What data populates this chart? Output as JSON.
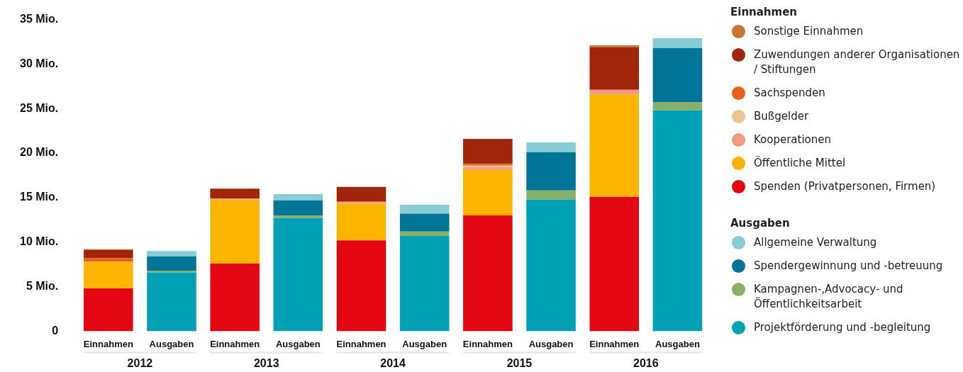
{
  "chart_data": {
    "type": "bar",
    "stacked": true,
    "categories": [
      "Einnahmen",
      "Ausgaben",
      "Einnahmen",
      "Ausgaben",
      "Einnahmen",
      "Ausgaben",
      "Einnahmen",
      "Ausgaben",
      "Einnahmen",
      "Ausgaben"
    ],
    "series": [
      {
        "name": "Spenden (Privatpersonen, Firmen)",
        "color": "#e30613",
        "values": [
          4.8,
          null,
          7.6,
          null,
          10.2,
          null,
          13.0,
          null,
          15.1,
          null
        ]
      },
      {
        "name": "Öffentliche Mittel",
        "color": "#fbb500",
        "values": [
          3.0,
          null,
          7.2,
          null,
          4.1,
          null,
          5.1,
          null,
          11.5,
          null
        ]
      },
      {
        "name": "Kooperationen",
        "color": "#f39b7f",
        "values": [
          null,
          null,
          0.1,
          null,
          0.2,
          null,
          0.3,
          null,
          0.5,
          null
        ]
      },
      {
        "name": "Bußgelder",
        "color": "#ecc590",
        "values": [
          null,
          null,
          null,
          null,
          null,
          null,
          0.2,
          null,
          null,
          null
        ]
      },
      {
        "name": "Sachspenden",
        "color": "#e8601c",
        "values": [
          0.4,
          null,
          null,
          null,
          0.1,
          null,
          0.2,
          null,
          null,
          null
        ]
      },
      {
        "name": "Zuwendungen anderer Organisationen / Stiftungen",
        "color": "#a0250b",
        "values": [
          0.9,
          null,
          1.1,
          null,
          1.6,
          null,
          2.8,
          null,
          4.8,
          null
        ]
      },
      {
        "name": "Sonstige Einnahmen",
        "color": "#c87533",
        "values": [
          0.1,
          null,
          null,
          null,
          null,
          null,
          null,
          null,
          0.2,
          null
        ]
      },
      {
        "name": "Projektförderung und -begleitung",
        "color": "#00a0b5",
        "values": [
          null,
          6.6,
          null,
          12.7,
          null,
          10.7,
          null,
          14.8,
          null,
          24.8
        ]
      },
      {
        "name": "Kampagnen-,Advocacy- und Öffentlichkeitsarbeit",
        "color": "#88b068",
        "values": [
          null,
          0.2,
          null,
          0.3,
          null,
          0.5,
          null,
          1.0,
          null,
          0.9
        ]
      },
      {
        "name": "Spendergewinnung und -betreuung",
        "color": "#007597",
        "values": [
          null,
          1.6,
          null,
          1.7,
          null,
          2.0,
          null,
          4.3,
          null,
          6.1
        ]
      },
      {
        "name": "Allgemeine Verwaltung",
        "color": "#88ccd4",
        "values": [
          null,
          0.6,
          null,
          0.7,
          null,
          1.0,
          null,
          1.1,
          null,
          1.1
        ]
      }
    ],
    "ylim": [
      0,
      35
    ],
    "yticks": [
      0,
      {
        "value": 5,
        "label": "5 Mio."
      },
      {
        "value": 10,
        "label": "10 Mio."
      },
      {
        "value": 15,
        "label": "15 Mio."
      },
      {
        "value": 20,
        "label": "20 Mio."
      },
      {
        "value": 25,
        "label": "25 Mio."
      },
      {
        "value": 30,
        "label": "30 Mio."
      },
      {
        "value": 35,
        "label": "35 Mio."
      }
    ],
    "legend": "right",
    "annotations": [
      "2012",
      "2013",
      "2014",
      "2015",
      "2016",
      "Einnahmen",
      "Ausgaben"
    ]
  }
}
